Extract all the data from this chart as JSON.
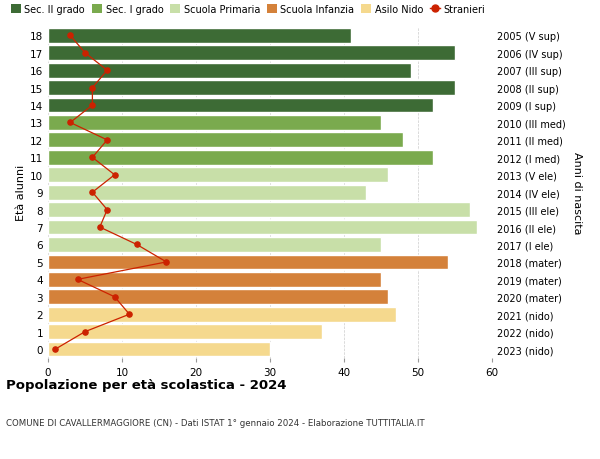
{
  "ages": [
    0,
    1,
    2,
    3,
    4,
    5,
    6,
    7,
    8,
    9,
    10,
    11,
    12,
    13,
    14,
    15,
    16,
    17,
    18
  ],
  "bar_values": [
    30,
    37,
    47,
    46,
    45,
    54,
    45,
    58,
    57,
    43,
    46,
    52,
    48,
    45,
    52,
    55,
    49,
    55,
    41
  ],
  "bar_colors": [
    "#f5d98e",
    "#f5d98e",
    "#f5d98e",
    "#d4813a",
    "#d4813a",
    "#d4813a",
    "#c8dfa8",
    "#c8dfa8",
    "#c8dfa8",
    "#c8dfa8",
    "#c8dfa8",
    "#7aaa4e",
    "#7aaa4e",
    "#7aaa4e",
    "#3d6b35",
    "#3d6b35",
    "#3d6b35",
    "#3d6b35",
    "#3d6b35"
  ],
  "stranieri_values": [
    1,
    5,
    11,
    9,
    4,
    16,
    12,
    7,
    8,
    6,
    9,
    6,
    8,
    3,
    6,
    6,
    8,
    5,
    3
  ],
  "right_labels": [
    "2023 (nido)",
    "2022 (nido)",
    "2021 (nido)",
    "2020 (mater)",
    "2019 (mater)",
    "2018 (mater)",
    "2017 (I ele)",
    "2016 (II ele)",
    "2015 (III ele)",
    "2014 (IV ele)",
    "2013 (V ele)",
    "2012 (I med)",
    "2011 (II med)",
    "2010 (III med)",
    "2009 (I sup)",
    "2008 (II sup)",
    "2007 (III sup)",
    "2006 (IV sup)",
    "2005 (V sup)"
  ],
  "legend_labels": [
    "Sec. II grado",
    "Sec. I grado",
    "Scuola Primaria",
    "Scuola Infanzia",
    "Asilo Nido",
    "Stranieri"
  ],
  "legend_colors": [
    "#3d6b35",
    "#7aaa4e",
    "#c8dfa8",
    "#d4813a",
    "#f5d98e",
    "#cc2200"
  ],
  "ylabel_left": "Età alunni",
  "ylabel_right": "Anni di nascita",
  "xlim": [
    0,
    60
  ],
  "xticks": [
    0,
    10,
    20,
    30,
    40,
    50,
    60
  ],
  "title": "Popolazione per età scolastica - 2024",
  "subtitle": "COMUNE DI CAVALLERMAGGIORE (CN) - Dati ISTAT 1° gennaio 2024 - Elaborazione TUTTITALIA.IT",
  "stranieri_color": "#cc2200",
  "background_color": "#ffffff",
  "bar_edge_color": "#ffffff"
}
